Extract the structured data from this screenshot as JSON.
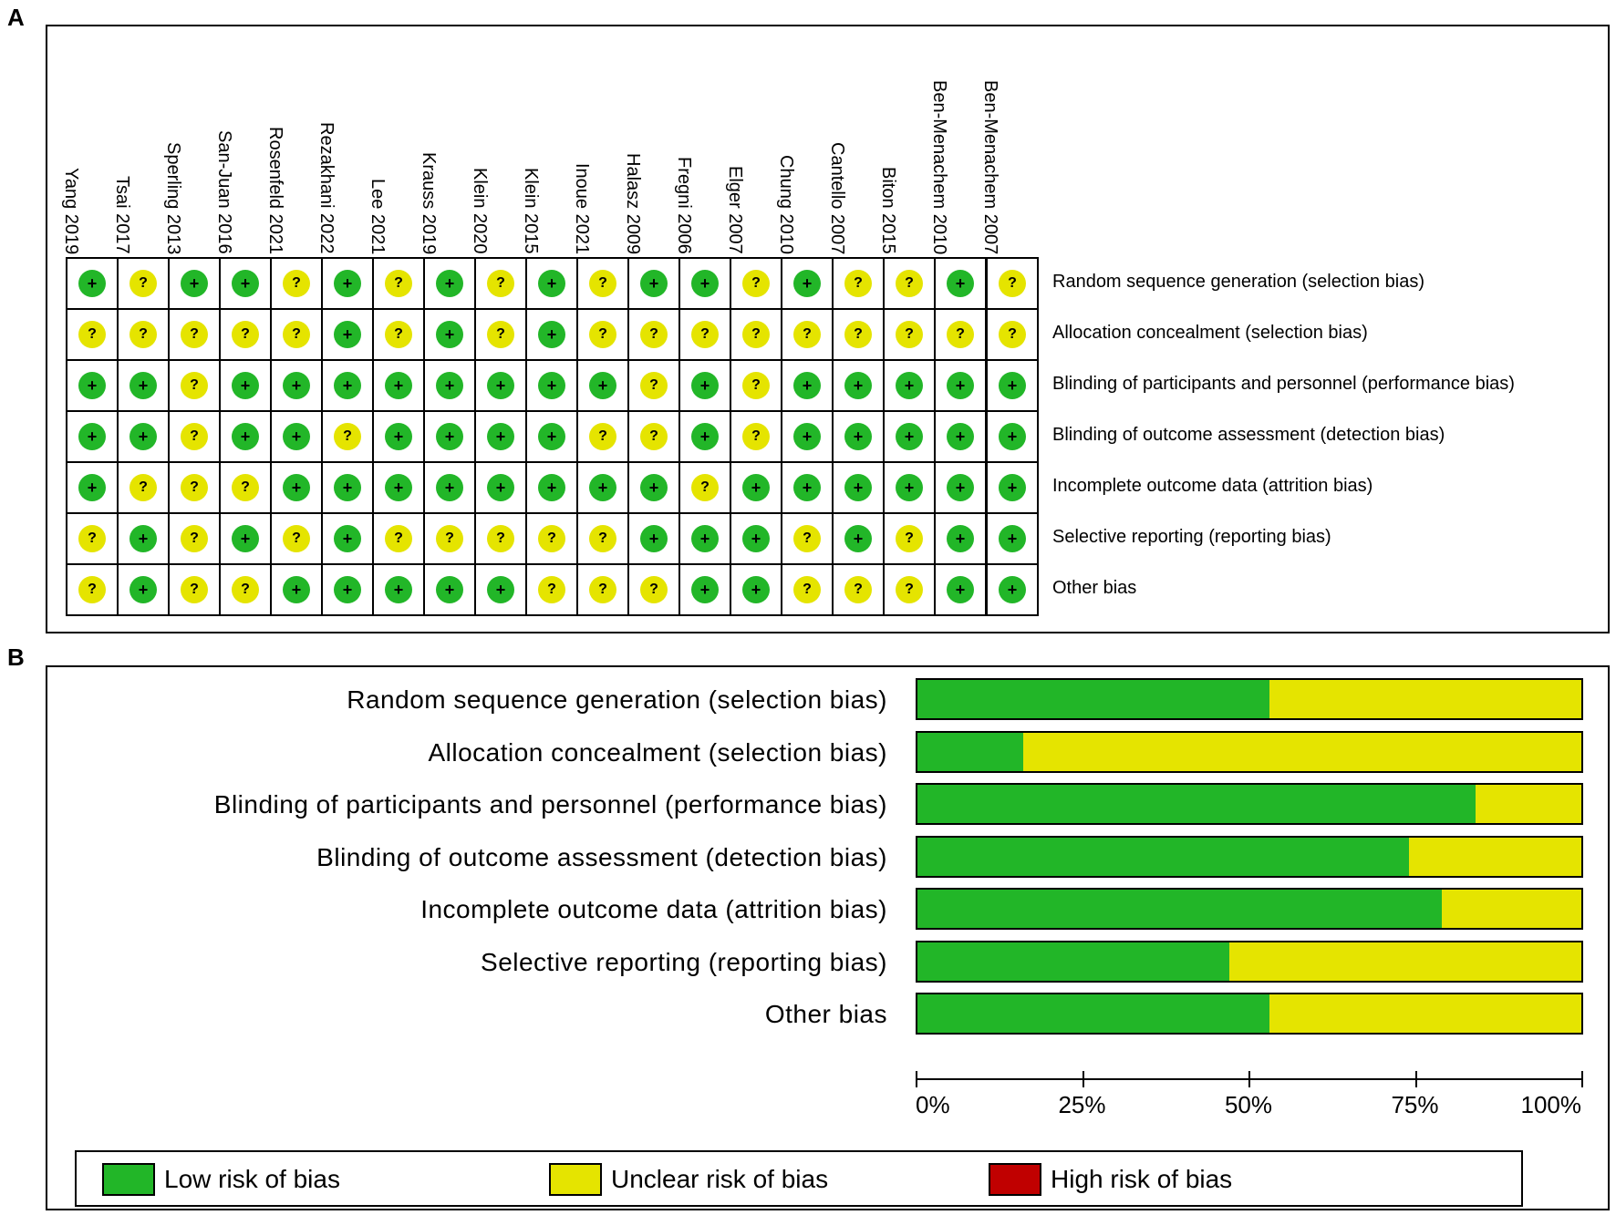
{
  "panel_a": {
    "letter": "A",
    "studies": [
      "Yang 2019",
      "Tsai 2017",
      "Sperling 2013",
      "San-Juan 2016",
      "Rosenfeld 2021",
      "Rezakhani 2022",
      "Lee 2021",
      "Krauss 2019",
      "Klein 2020",
      "Klein 2015",
      "Inoue 2021",
      "Halasz 2009",
      "Fregni 2006",
      "Elger 2007",
      "Chung 2010",
      "Cantello 2007",
      "Biton 2015",
      "Ben-Menachem 2010",
      "Ben-Menachem 2007"
    ],
    "domains": [
      "Random sequence generation (selection bias)",
      "Allocation concealment (selection bias)",
      "Blinding of participants and personnel (performance bias)",
      "Blinding of outcome assessment (detection bias)",
      "Incomplete outcome data (attrition bias)",
      "Selective reporting (reporting bias)",
      "Other bias"
    ],
    "symbols": {
      "low": "+",
      "unclear": "?"
    },
    "matrix": [
      [
        "low",
        "unclear",
        "low",
        "low",
        "unclear",
        "low",
        "unclear",
        "low",
        "unclear",
        "low",
        "unclear",
        "low",
        "low",
        "unclear",
        "low",
        "unclear",
        "unclear",
        "low",
        "unclear"
      ],
      [
        "unclear",
        "unclear",
        "unclear",
        "unclear",
        "unclear",
        "low",
        "unclear",
        "low",
        "unclear",
        "low",
        "unclear",
        "unclear",
        "unclear",
        "unclear",
        "unclear",
        "unclear",
        "unclear",
        "unclear",
        "unclear"
      ],
      [
        "low",
        "low",
        "unclear",
        "low",
        "low",
        "low",
        "low",
        "low",
        "low",
        "low",
        "low",
        "unclear",
        "low",
        "unclear",
        "low",
        "low",
        "low",
        "low",
        "low"
      ],
      [
        "low",
        "low",
        "unclear",
        "low",
        "low",
        "unclear",
        "low",
        "low",
        "low",
        "low",
        "unclear",
        "unclear",
        "low",
        "unclear",
        "low",
        "low",
        "low",
        "low",
        "low"
      ],
      [
        "low",
        "unclear",
        "unclear",
        "unclear",
        "low",
        "low",
        "low",
        "low",
        "low",
        "low",
        "low",
        "low",
        "unclear",
        "low",
        "low",
        "low",
        "low",
        "low",
        "low"
      ],
      [
        "unclear",
        "low",
        "unclear",
        "low",
        "unclear",
        "low",
        "unclear",
        "unclear",
        "unclear",
        "unclear",
        "unclear",
        "low",
        "low",
        "low",
        "unclear",
        "low",
        "unclear",
        "low",
        "low"
      ],
      [
        "unclear",
        "low",
        "unclear",
        "unclear",
        "low",
        "low",
        "low",
        "low",
        "low",
        "unclear",
        "unclear",
        "unclear",
        "low",
        "low",
        "unclear",
        "unclear",
        "unclear",
        "low",
        "low"
      ]
    ]
  },
  "panel_b": {
    "letter": "B",
    "legend": [
      {
        "label": "Low risk of bias",
        "color": "#22b628"
      },
      {
        "label": "Unclear risk of bias",
        "color": "#e5e400"
      },
      {
        "label": "High risk of bias",
        "color": "#c00000"
      }
    ]
  },
  "chart_data": {
    "type": "bar",
    "orientation": "horizontal-stacked",
    "categories": [
      "Random sequence generation (selection bias)",
      "Allocation concealment (selection bias)",
      "Blinding of participants and personnel (performance bias)",
      "Blinding of outcome assessment (detection bias)",
      "Incomplete outcome data (attrition bias)",
      "Selective reporting (reporting bias)",
      "Other bias"
    ],
    "series": [
      {
        "name": "Low risk of bias",
        "values": [
          53,
          16,
          84,
          74,
          79,
          47,
          53
        ]
      },
      {
        "name": "Unclear risk of bias",
        "values": [
          47,
          84,
          16,
          26,
          21,
          53,
          47
        ]
      },
      {
        "name": "High risk of bias",
        "values": [
          0,
          0,
          0,
          0,
          0,
          0,
          0
        ]
      }
    ],
    "xticks": [
      "0%",
      "25%",
      "50%",
      "75%",
      "100%"
    ],
    "xlim": [
      0,
      100
    ]
  }
}
